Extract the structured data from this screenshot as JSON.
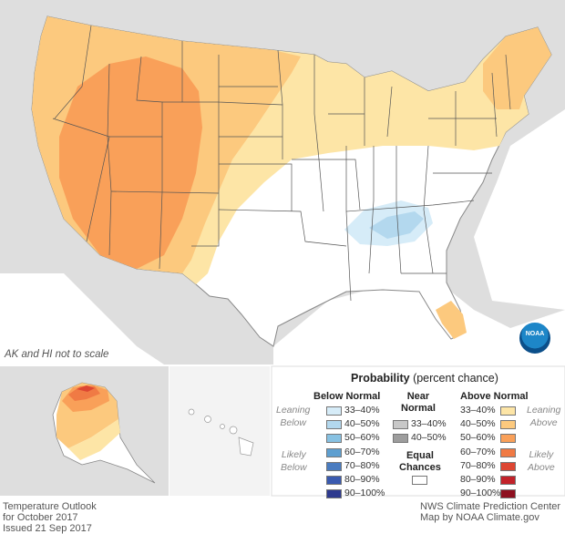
{
  "notes": {
    "scale_note": "AK and HI not to scale"
  },
  "credits": {
    "left": [
      "Temperature Outlook",
      "for October 2017",
      "Issued 21 Sep 2017"
    ],
    "right": [
      "NWS Climate Prediction Center",
      "Map by NOAA Climate.gov"
    ]
  },
  "logo": {
    "text": "NOAA"
  },
  "legend": {
    "title_bold": "Probability",
    "title_rest": " (percent chance)",
    "below_normal": {
      "heading": "Below Normal",
      "side_top": [
        "Leaning",
        "Below"
      ],
      "side_bottom": [
        "Likely",
        "Below"
      ],
      "items": [
        {
          "label": "33–40%",
          "color": "#d6ecf8"
        },
        {
          "label": "40–50%",
          "color": "#b3d8ee"
        },
        {
          "label": "50–60%",
          "color": "#87c1e2"
        },
        {
          "label": "60–70%",
          "color": "#5e9fd0"
        },
        {
          "label": "70–80%",
          "color": "#4a7cc0"
        },
        {
          "label": "80–90%",
          "color": "#3a5aaf"
        },
        {
          "label": "90–100%",
          "color": "#2e3a8f"
        }
      ]
    },
    "near_normal": {
      "heading": [
        "Near",
        "Normal"
      ],
      "items": [
        {
          "label": "33–40%",
          "color": "#c8c8c8"
        },
        {
          "label": "40–50%",
          "color": "#9d9d9d"
        }
      ]
    },
    "equal_chances": {
      "label": [
        "Equal",
        "Chances"
      ],
      "color": "#ffffff"
    },
    "above_normal": {
      "heading": "Above Normal",
      "side_top": [
        "Leaning",
        "Above"
      ],
      "side_bottom": [
        "Likely",
        "Above"
      ],
      "items": [
        {
          "label": "33–40%",
          "color": "#fde5a6"
        },
        {
          "label": "40–50%",
          "color": "#fcc97e"
        },
        {
          "label": "50–60%",
          "color": "#f9a059"
        },
        {
          "label": "60–70%",
          "color": "#f07a44"
        },
        {
          "label": "70–80%",
          "color": "#dd4632"
        },
        {
          "label": "80–90%",
          "color": "#c2222a"
        },
        {
          "label": "90–100%",
          "color": "#8e1020"
        }
      ]
    }
  },
  "colors": {
    "background_land": "#dedede",
    "water": "#ffffff",
    "equal_chances": "#ffffff",
    "state_lines": "#555555"
  }
}
